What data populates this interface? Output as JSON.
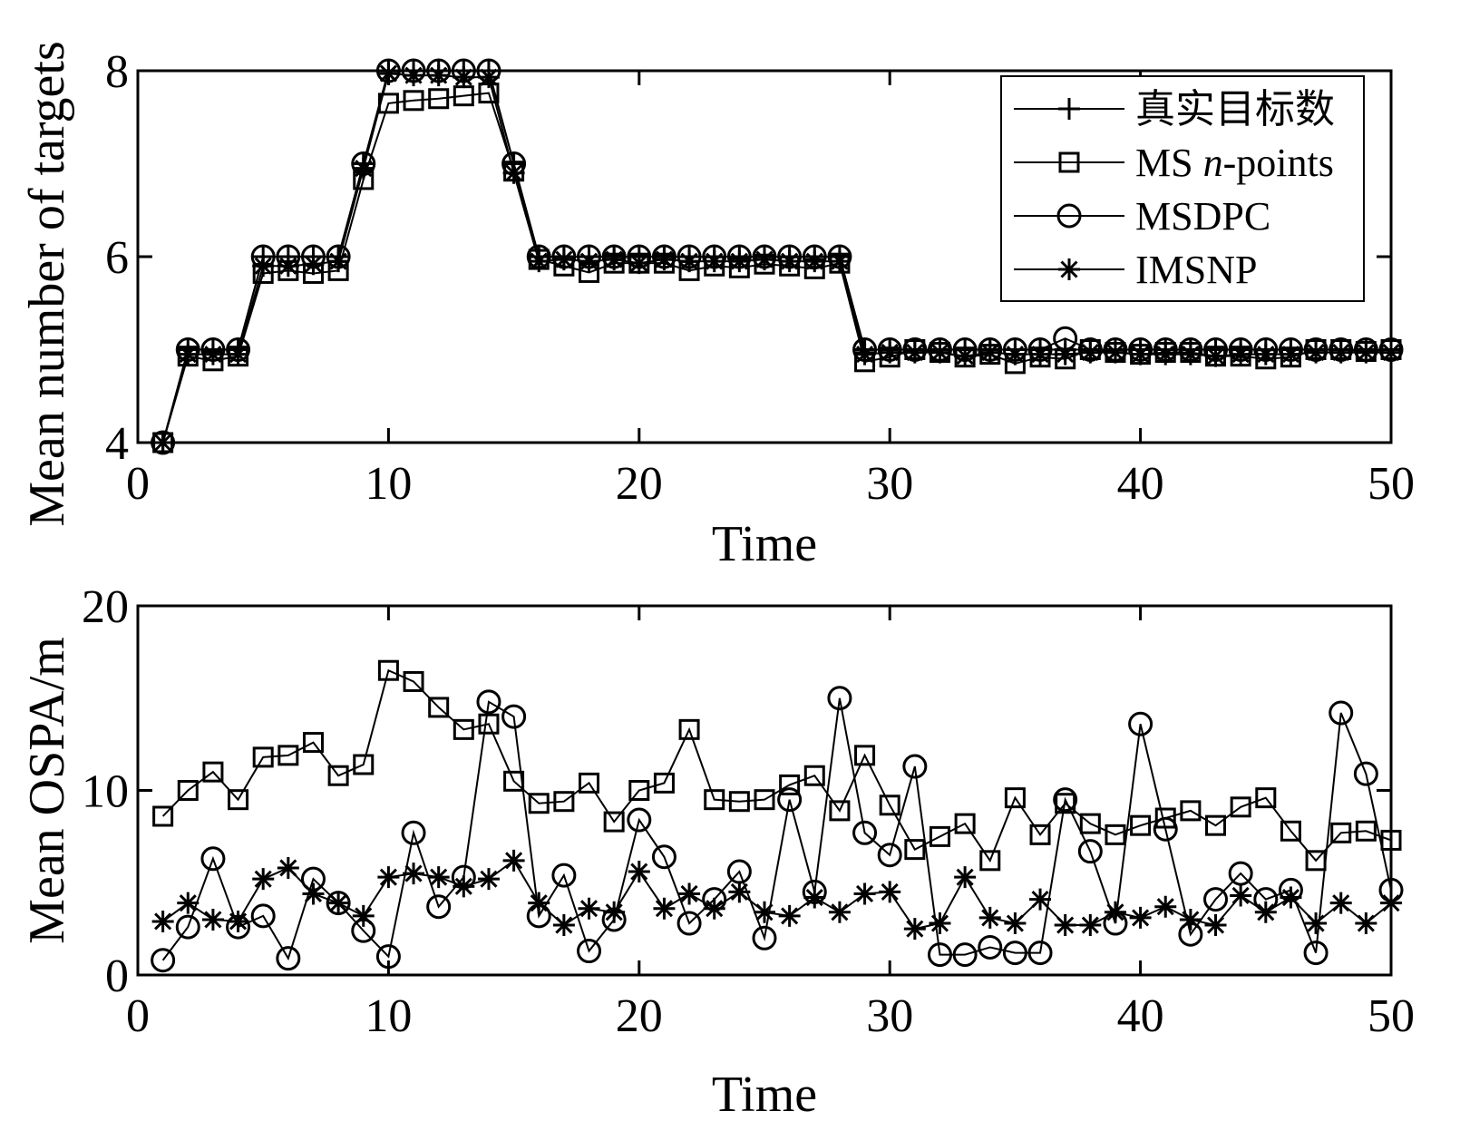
{
  "chart_data": [
    {
      "type": "line",
      "xlabel": "Time",
      "ylabel": "Mean number of targets",
      "xlim": [
        0,
        50
      ],
      "ylim": [
        4,
        8
      ],
      "xticks": [
        0,
        10,
        20,
        30,
        40,
        50
      ],
      "yticks": [
        4,
        6,
        8
      ],
      "legend_position": "top-right",
      "x": [
        1,
        2,
        3,
        4,
        5,
        6,
        7,
        8,
        9,
        10,
        11,
        12,
        13,
        14,
        15,
        16,
        17,
        18,
        19,
        20,
        21,
        22,
        23,
        24,
        25,
        26,
        27,
        28,
        29,
        30,
        31,
        32,
        33,
        34,
        35,
        36,
        37,
        38,
        39,
        40,
        41,
        42,
        43,
        44,
        45,
        46,
        47,
        48,
        49,
        50
      ],
      "series": [
        {
          "name": "真实目标数",
          "marker": "plus",
          "values": [
            4,
            5,
            5,
            5,
            6,
            6,
            6,
            6,
            7,
            8,
            8,
            8,
            8,
            8,
            7,
            6,
            6,
            6,
            6,
            6,
            6,
            6,
            6,
            6,
            6,
            6,
            6,
            6,
            5,
            5,
            5,
            5,
            5,
            5,
            5,
            5,
            5,
            5,
            5,
            5,
            5,
            5,
            5,
            5,
            5,
            5,
            5,
            5,
            5,
            5
          ]
        },
        {
          "name": "MS n-points",
          "marker": "square",
          "values": [
            4,
            4.93,
            4.88,
            4.93,
            5.82,
            5.85,
            5.82,
            5.85,
            6.83,
            7.65,
            7.68,
            7.7,
            7.73,
            7.76,
            6.92,
            5.97,
            5.9,
            5.83,
            5.93,
            5.93,
            5.93,
            5.85,
            5.9,
            5.88,
            5.92,
            5.9,
            5.87,
            5.93,
            4.87,
            4.92,
            5,
            4.97,
            4.92,
            4.95,
            4.85,
            4.92,
            4.9,
            5,
            4.97,
            4.95,
            4.97,
            4.97,
            4.93,
            4.93,
            4.9,
            4.92,
            5,
            5,
            4.98,
            5
          ]
        },
        {
          "name": "MSDPC",
          "marker": "circle",
          "values": [
            4,
            5,
            5,
            5,
            6,
            6,
            6,
            6,
            7,
            8,
            8,
            8,
            8,
            8,
            7,
            6,
            6,
            6,
            6,
            6,
            6,
            6,
            6,
            6,
            6,
            6,
            6,
            6,
            5,
            5,
            5,
            5,
            5,
            5,
            5,
            5,
            5.12,
            5,
            5,
            5,
            5,
            5,
            5,
            5,
            5,
            5,
            5,
            5,
            5,
            5
          ]
        },
        {
          "name": "IMSNP",
          "marker": "asterisk",
          "values": [
            4,
            4.95,
            4.95,
            4.95,
            5.9,
            5.9,
            5.92,
            5.95,
            6.95,
            7.97,
            7.95,
            7.95,
            7.93,
            7.93,
            6.9,
            5.95,
            5.97,
            5.95,
            5.97,
            5.93,
            5.97,
            5.95,
            5.95,
            5.95,
            5.97,
            5.95,
            5.95,
            5.95,
            4.95,
            4.97,
            4.97,
            4.97,
            4.93,
            4.97,
            4.95,
            4.95,
            4.95,
            4.97,
            4.97,
            4.95,
            4.95,
            4.95,
            4.93,
            4.95,
            4.95,
            4.95,
            4.97,
            4.97,
            4.97,
            4.97
          ]
        }
      ]
    },
    {
      "type": "line",
      "xlabel": "Time",
      "ylabel": "Mean OSPA/m",
      "xlim": [
        0,
        50
      ],
      "ylim": [
        0,
        20
      ],
      "xticks": [
        0,
        10,
        20,
        30,
        40,
        50
      ],
      "yticks": [
        0,
        10,
        20
      ],
      "x": [
        1,
        2,
        3,
        4,
        5,
        6,
        7,
        8,
        9,
        10,
        11,
        12,
        13,
        14,
        15,
        16,
        17,
        18,
        19,
        20,
        21,
        22,
        23,
        24,
        25,
        26,
        27,
        28,
        29,
        30,
        31,
        32,
        33,
        34,
        35,
        36,
        37,
        38,
        39,
        40,
        41,
        42,
        43,
        44,
        45,
        46,
        47,
        48,
        49,
        50
      ],
      "series": [
        {
          "name": "MS n-points",
          "marker": "square",
          "values": [
            8.6,
            10,
            11,
            9.5,
            11.8,
            11.9,
            12.6,
            10.8,
            11.4,
            16.5,
            15.9,
            14.5,
            13.3,
            13.6,
            10.5,
            9.3,
            9.4,
            10.4,
            8.3,
            10,
            10.4,
            13.3,
            9.5,
            9.4,
            9.5,
            10.3,
            10.8,
            8.9,
            11.9,
            9.2,
            6.8,
            7.5,
            8.2,
            6.2,
            9.6,
            7.6,
            9.3,
            8.2,
            7.6,
            8.1,
            8.5,
            8.9,
            8.1,
            9.1,
            9.6,
            7.8,
            6.2,
            7.7,
            7.8,
            7.3
          ]
        },
        {
          "name": "MSDPC",
          "marker": "circle",
          "values": [
            0.8,
            2.6,
            6.3,
            2.6,
            3.2,
            0.9,
            5.2,
            3.9,
            2.4,
            1,
            7.7,
            3.7,
            5.3,
            14.8,
            14,
            3.2,
            5.4,
            1.3,
            3,
            8.4,
            6.4,
            2.8,
            4.1,
            5.6,
            2,
            9.5,
            4.5,
            15,
            7.7,
            6.5,
            11.3,
            1.1,
            1.1,
            1.5,
            1.2,
            1.2,
            9.5,
            6.7,
            2.8,
            13.6,
            7.9,
            2.2,
            4.1,
            5.5,
            4.1,
            4.6,
            1.2,
            14.2,
            10.9,
            4.6
          ]
        },
        {
          "name": "IMSNP",
          "marker": "asterisk",
          "values": [
            2.9,
            3.9,
            3,
            2.9,
            5.2,
            5.8,
            4.4,
            3.9,
            3.2,
            5.3,
            5.5,
            5.3,
            4.8,
            5.2,
            6.2,
            3.9,
            2.7,
            3.6,
            3.4,
            5.6,
            3.6,
            4.4,
            3.6,
            4.5,
            3.4,
            3.2,
            4.2,
            3.4,
            4.4,
            4.5,
            2.5,
            2.8,
            5.3,
            3.1,
            2.8,
            4.1,
            2.7,
            2.7,
            3.4,
            3.1,
            3.7,
            3,
            2.7,
            4.3,
            3.4,
            4.2,
            2.8,
            3.9,
            2.8,
            3.9
          ]
        }
      ]
    }
  ]
}
